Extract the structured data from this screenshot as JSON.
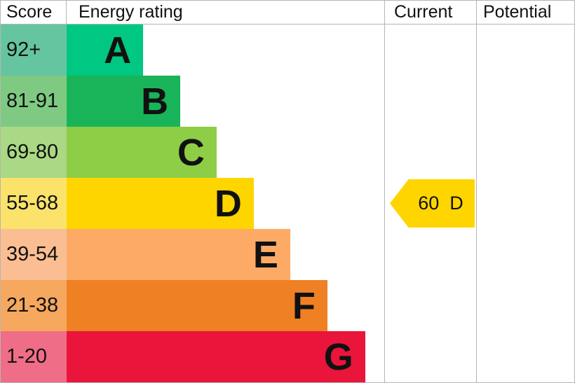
{
  "header": {
    "score": "Score",
    "energy_rating": "Energy rating",
    "current": "Current",
    "potential": "Potential"
  },
  "rows": [
    {
      "score": "92+",
      "letter": "A",
      "bar_color": "#00c781",
      "score_color": "#66c5a1",
      "width_pct": 24.1
    },
    {
      "score": "81-91",
      "letter": "B",
      "bar_color": "#19b459",
      "score_color": "#7fca82",
      "width_pct": 35.8
    },
    {
      "score": "69-80",
      "letter": "C",
      "bar_color": "#8dce46",
      "score_color": "#aad884",
      "width_pct": 47.2
    },
    {
      "score": "55-68",
      "letter": "D",
      "bar_color": "#ffd500",
      "score_color": "#fbe26b",
      "width_pct": 58.9
    },
    {
      "score": "39-54",
      "letter": "E",
      "bar_color": "#fcaa65",
      "score_color": "#fabe92",
      "width_pct": 70.4
    },
    {
      "score": "21-38",
      "letter": "F",
      "bar_color": "#ef8023",
      "score_color": "#f5a85e",
      "width_pct": 82.1
    },
    {
      "score": "1-20",
      "letter": "G",
      "bar_color": "#e9153b",
      "score_color": "#ef6d87",
      "width_pct": 94.0
    }
  ],
  "current_marker": {
    "score": "60",
    "rating": "D",
    "color": "#ffd500",
    "row_index": 3
  },
  "colors": {
    "grid_border": "#b5b5b5",
    "text": "#111111",
    "background": "#ffffff"
  },
  "chart_data": {
    "type": "bar",
    "title": "",
    "categories": [
      "A",
      "B",
      "C",
      "D",
      "E",
      "F",
      "G"
    ],
    "score_ranges": [
      "92+",
      "81-91",
      "69-80",
      "55-68",
      "39-54",
      "21-38",
      "1-20"
    ],
    "bar_widths_pct": [
      24.1,
      35.8,
      47.2,
      58.9,
      70.4,
      82.1,
      94.0
    ],
    "bar_colors": [
      "#00c781",
      "#19b459",
      "#8dce46",
      "#ffd500",
      "#fcaa65",
      "#ef8023",
      "#e9153b"
    ],
    "columns": [
      "Score",
      "Energy rating",
      "Current",
      "Potential"
    ],
    "current": {
      "score": 60,
      "rating": "D"
    },
    "potential": null,
    "legend_position": "none",
    "grid": false
  }
}
